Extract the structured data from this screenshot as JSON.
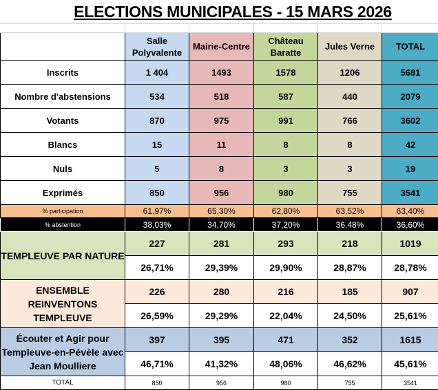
{
  "title": "ELECTIONS MUNICIPALES - 15 MARS 2026",
  "columns": [
    "Salle Polyvalente",
    "Mairie-Centre",
    "Château Baratte",
    "Jules Verne",
    "TOTAL"
  ],
  "column_colors": [
    "#c5d9f1",
    "#e6b8b7",
    "#c4d79b",
    "#ddd9c4",
    "#4bacc6"
  ],
  "rows": [
    {
      "label": "Inscrits",
      "values": [
        "1 404",
        "1493",
        "1578",
        "1206",
        "5681"
      ]
    },
    {
      "label": "Nombre d'abstensions",
      "values": [
        "534",
        "518",
        "587",
        "440",
        "2079"
      ]
    },
    {
      "label": "Votants",
      "values": [
        "870",
        "975",
        "991",
        "766",
        "3602"
      ]
    },
    {
      "label": "Blancs",
      "values": [
        "15",
        "11",
        "8",
        "8",
        "42"
      ]
    },
    {
      "label": "Nuls",
      "values": [
        "5",
        "8",
        "3",
        "3",
        "19"
      ]
    },
    {
      "label": "Exprimés",
      "values": [
        "850",
        "956",
        "980",
        "755",
        "3541"
      ]
    }
  ],
  "participation": {
    "label": "% participation",
    "values": [
      "61,97%",
      "65,30%",
      "62,80%",
      "63,52%",
      "63,40%"
    ]
  },
  "abstention": {
    "label": "% abstention",
    "values": [
      "38,03%",
      "34,70%",
      "37,20%",
      "36,48%",
      "36,60%"
    ]
  },
  "parties": [
    {
      "name": "TEMPLEUVE PAR NATURE",
      "votes": [
        "227",
        "281",
        "293",
        "218",
        "1019"
      ],
      "percent": [
        "26,71%",
        "29,39%",
        "29,90%",
        "28,87%",
        "28,78%"
      ],
      "color": "#d8e4bc"
    },
    {
      "name": "ENSEMBLE REINVENTONS TEMPLEUVE",
      "votes": [
        "226",
        "280",
        "216",
        "185",
        "907"
      ],
      "percent": [
        "26,59%",
        "29,29%",
        "22,04%",
        "24,50%",
        "25,61%"
      ],
      "color": "#fde9d9"
    },
    {
      "name": "Écouter et Agir pour Templeuve-en-Pévèle avec Jean Moulliere",
      "votes": [
        "397",
        "395",
        "471",
        "352",
        "1615"
      ],
      "percent": [
        "46,71%",
        "41,32%",
        "48,06%",
        "46,62%",
        "45,61%"
      ],
      "color": "#b8cce4"
    }
  ],
  "total": {
    "label": "TOTAL",
    "values": [
      "850",
      "956",
      "980",
      "755",
      "3541"
    ]
  }
}
